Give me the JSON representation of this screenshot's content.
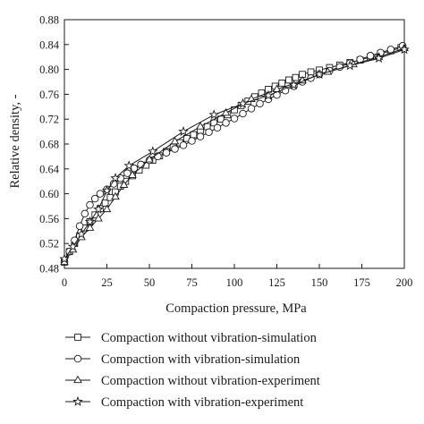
{
  "chart_data": {
    "type": "line",
    "xlabel": "Compaction pressure, MPa",
    "ylabel": "Relative density, -",
    "xlim": [
      0,
      200
    ],
    "ylim": [
      0.48,
      0.88
    ],
    "xticks": [
      0,
      25,
      50,
      75,
      100,
      125,
      150,
      175,
      200
    ],
    "yticks": [
      0.48,
      0.52,
      0.56,
      0.6,
      0.64,
      0.68,
      0.72,
      0.76,
      0.8,
      0.84,
      0.88
    ],
    "x_tick_labels": [
      "0",
      "25",
      "50",
      "75",
      "100",
      "125",
      "150",
      "175",
      "200"
    ],
    "y_tick_labels": [
      "0.48",
      "0.52",
      "0.56",
      "0.60",
      "0.64",
      "0.68",
      "0.72",
      "0.76",
      "0.80",
      "0.84",
      "0.88"
    ],
    "grid": false,
    "legend_position": "below",
    "series": [
      {
        "name": "Compaction without vibration-simulation",
        "marker": "square",
        "x": [
          0,
          3,
          6,
          9,
          12,
          15,
          18,
          21,
          24,
          27,
          30,
          33,
          36,
          40,
          44,
          48,
          52,
          56,
          60,
          64,
          68,
          72,
          76,
          80,
          84,
          88,
          92,
          96,
          100,
          104,
          108,
          112,
          116,
          120,
          124,
          128,
          132,
          136,
          140,
          145,
          150,
          156,
          162,
          168,
          174,
          180,
          186,
          192,
          198
        ],
        "y": [
          0.49,
          0.507,
          0.52,
          0.532,
          0.545,
          0.555,
          0.566,
          0.576,
          0.585,
          0.594,
          0.603,
          0.612,
          0.62,
          0.629,
          0.638,
          0.646,
          0.654,
          0.661,
          0.668,
          0.675,
          0.682,
          0.689,
          0.695,
          0.702,
          0.708,
          0.714,
          0.72,
          0.727,
          0.735,
          0.742,
          0.749,
          0.756,
          0.762,
          0.768,
          0.773,
          0.778,
          0.783,
          0.787,
          0.792,
          0.796,
          0.799,
          0.803,
          0.807,
          0.811,
          0.815,
          0.82,
          0.825,
          0.83,
          0.835
        ]
      },
      {
        "name": "Compaction with vibration-simulation",
        "marker": "circle",
        "x": [
          0,
          3,
          6,
          9,
          12,
          15,
          18,
          21,
          25,
          29,
          33,
          37,
          41,
          45,
          50,
          55,
          60,
          65,
          70,
          75,
          80,
          85,
          90,
          95,
          100,
          105,
          110,
          115,
          120,
          125,
          130,
          135,
          140,
          145,
          150,
          156,
          162,
          168,
          174,
          180,
          186,
          192,
          199
        ],
        "y": [
          0.49,
          0.507,
          0.525,
          0.548,
          0.568,
          0.582,
          0.592,
          0.6,
          0.607,
          0.616,
          0.625,
          0.633,
          0.641,
          0.647,
          0.654,
          0.66,
          0.666,
          0.672,
          0.678,
          0.685,
          0.692,
          0.699,
          0.706,
          0.714,
          0.721,
          0.729,
          0.737,
          0.745,
          0.752,
          0.759,
          0.766,
          0.773,
          0.78,
          0.786,
          0.792,
          0.798,
          0.804,
          0.81,
          0.816,
          0.822,
          0.827,
          0.832,
          0.838
        ]
      },
      {
        "name": "Compaction without vibration-experiment",
        "marker": "triangle",
        "x": [
          0,
          5,
          10,
          15,
          20,
          25,
          30,
          35,
          40,
          50,
          65,
          80,
          95,
          110,
          125,
          140,
          155,
          170,
          185,
          200
        ],
        "y": [
          0.49,
          0.51,
          0.53,
          0.545,
          0.56,
          0.575,
          0.595,
          0.614,
          0.63,
          0.655,
          0.684,
          0.708,
          0.73,
          0.752,
          0.768,
          0.782,
          0.796,
          0.808,
          0.82,
          0.834
        ]
      },
      {
        "name": "Compaction with vibration-experiment",
        "marker": "star",
        "x": [
          0,
          5,
          10,
          15,
          20,
          25,
          30,
          38,
          52,
          70,
          88,
          105,
          120,
          135,
          150,
          168,
          185,
          200
        ],
        "y": [
          0.495,
          0.515,
          0.535,
          0.555,
          0.575,
          0.605,
          0.625,
          0.645,
          0.668,
          0.7,
          0.727,
          0.745,
          0.758,
          0.775,
          0.792,
          0.806,
          0.818,
          0.832
        ]
      }
    ]
  }
}
